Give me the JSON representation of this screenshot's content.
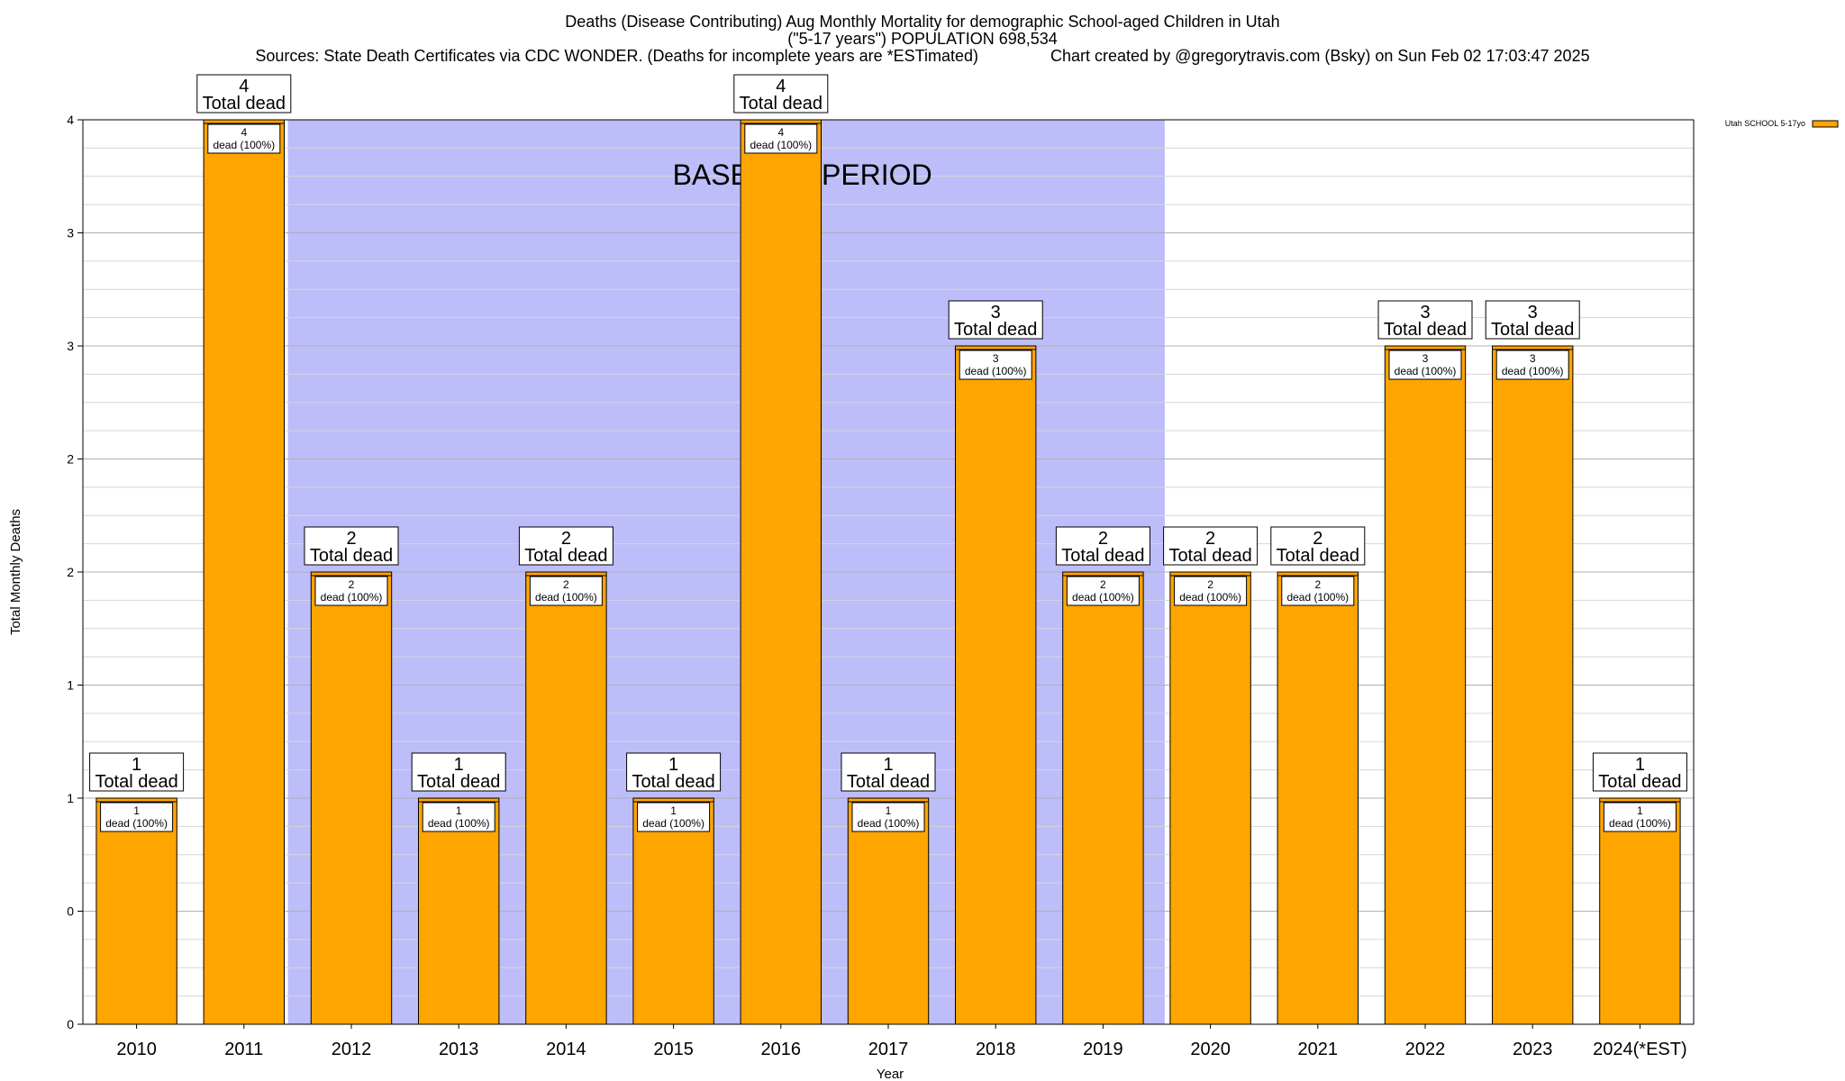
{
  "title_lines": [
    "Deaths (Disease Contributing) Aug Monthly Mortality for demographic School-aged Children in Utah",
    "(\"5-17 years\") POPULATION 698,534",
    "Sources: State Death Certificates via CDC WONDER. (Deaths for incomplete years are *ESTimated)                Chart created by @gregorytravis.com (Bsky) on Sun Feb 02 17:03:47 2025"
  ],
  "colors": {
    "bar": "#ffa500",
    "baseline": "#bdbdfa",
    "grid_major": "#b0b0b0",
    "grid_minor": "#d6d6d6"
  },
  "chart_data": {
    "type": "bar",
    "title": "Deaths (Disease Contributing) Aug Monthly Mortality for demographic School-aged Children in Utah",
    "xlabel": "Year",
    "ylabel": "Total Monthly Deaths",
    "ylim": [
      0,
      4
    ],
    "y_ticks": [
      0,
      0.5,
      1,
      1.5,
      2,
      2.5,
      3,
      3.5,
      4
    ],
    "y_tick_labels": [
      "0",
      "0",
      "1",
      "1",
      "2",
      "2",
      "3",
      "3",
      "4"
    ],
    "grid": true,
    "legend": {
      "position": "top-right",
      "label": "Utah SCHOOL 5-17yo"
    },
    "baseline": {
      "label": "BASELINE PERIOD",
      "from": "2012",
      "to": "2019"
    },
    "categories": [
      "2010",
      "2011",
      "2012",
      "2013",
      "2014",
      "2015",
      "2016",
      "2017",
      "2018",
      "2019",
      "2020",
      "2021",
      "2022",
      "2023",
      "2024(*EST)"
    ],
    "series": [
      {
        "name": "Utah SCHOOL 5-17yo",
        "values": [
          1,
          4,
          2,
          1,
          2,
          1,
          4,
          1,
          3,
          2,
          2,
          2,
          3,
          3,
          1
        ]
      }
    ],
    "total_label": "Total dead",
    "inner_label": "dead (100%)"
  }
}
